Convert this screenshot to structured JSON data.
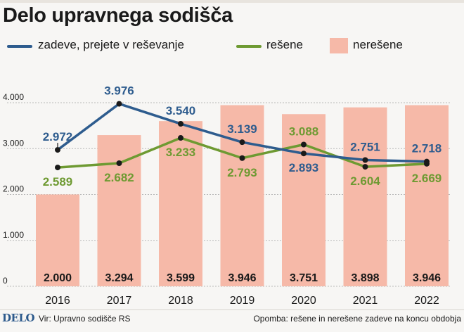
{
  "page": {
    "title": "Delo upravnega sodišča",
    "logo": "DELO",
    "source": "Vir: Upravno sodišče RS",
    "note": "Opomba: rešene in nerešene zadeve na koncu obdobja"
  },
  "colors": {
    "prejete": "#2e5c8e",
    "resene": "#6e9a32",
    "neresene": "#f6b9a8",
    "grid": "#b9b9b9",
    "text": "#1a1a1a"
  },
  "chart_data": {
    "type": "bar+line",
    "title": "Delo upravnega sodišča",
    "categories": [
      "2016",
      "2017",
      "2018",
      "2019",
      "2020",
      "2021",
      "2022"
    ],
    "ylim": [
      0,
      4000
    ],
    "yticks": [
      0,
      1000,
      2000,
      3000,
      4000
    ],
    "ytick_labels": [
      "0",
      "1.000",
      "2.000",
      "3.000",
      "4.000"
    ],
    "grid": true,
    "legend": {
      "placement": "top",
      "entries": [
        "zadeve, prejete v reševanje",
        "rešene",
        "nerešene"
      ]
    },
    "series": [
      {
        "name": "nerešene",
        "kind": "bar",
        "values": [
          2000,
          3294,
          3599,
          3946,
          3751,
          3898,
          3946
        ],
        "labels": [
          "2.000",
          "3.294",
          "3.599",
          "3.946",
          "3.751",
          "3.898",
          "3.946"
        ]
      },
      {
        "name": "zadeve, prejete v reševanje",
        "kind": "line",
        "values": [
          2972,
          3976,
          3540,
          3139,
          2893,
          2751,
          2718
        ],
        "labels": [
          "2.972",
          "3.976",
          "3.540",
          "3.139",
          "2.893",
          "2.751",
          "2.718"
        ]
      },
      {
        "name": "rešene",
        "kind": "line",
        "values": [
          2589,
          2682,
          3233,
          2793,
          3088,
          2604,
          2669
        ],
        "labels": [
          "2.589",
          "2.682",
          "3.233",
          "2.793",
          "3.088",
          "2.604",
          "2.669"
        ]
      }
    ]
  }
}
